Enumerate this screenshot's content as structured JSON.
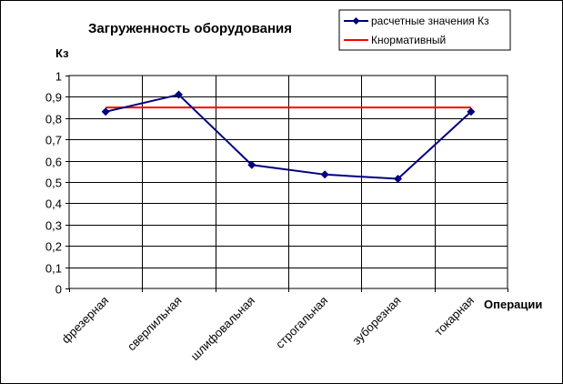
{
  "chart_data": {
    "type": "line",
    "title": "Загруженность оборудования",
    "ylabel": "Кз",
    "xlabel": "Операции",
    "categories": [
      "фрезерная",
      "сверлильная",
      "шлифовальная",
      "строгальная",
      "зуборезная",
      "токарная"
    ],
    "ylim": [
      0,
      1
    ],
    "yticks": [
      "0",
      "0,1",
      "0,2",
      "0,3",
      "0,4",
      "0,5",
      "0,6",
      "0,7",
      "0,8",
      "0,9",
      "1"
    ],
    "grid": true,
    "legend_position": "top-right",
    "series": [
      {
        "name": "расчетные значения Кз",
        "values": [
          0.83,
          0.91,
          0.58,
          0.535,
          0.515,
          0.83
        ],
        "color": "#000080",
        "marker": "diamond"
      },
      {
        "name": "Кнормативный",
        "values": [
          0.85,
          0.85,
          0.85,
          0.85,
          0.85,
          0.85
        ],
        "color": "#ff0000",
        "marker": "none"
      }
    ]
  }
}
